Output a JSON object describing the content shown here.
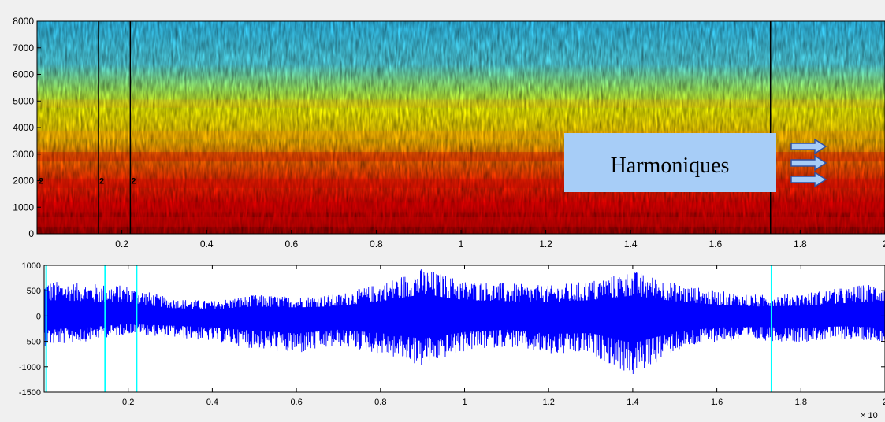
{
  "chart_data": [
    {
      "type": "heatmap",
      "title": "",
      "xlabel": "",
      "ylabel": "",
      "xlim": [
        0,
        2
      ],
      "ylim": [
        0,
        8000
      ],
      "xticks": [
        "0.2",
        "0.4",
        "0.6",
        "0.8",
        "1",
        "1.2",
        "1.4",
        "1.6",
        "1.8",
        "2"
      ],
      "yticks": [
        "0",
        "1000",
        "2000",
        "3000",
        "4000",
        "5000",
        "6000",
        "7000",
        "8000"
      ],
      "x_markers": [
        0.145,
        0.22,
        1.73
      ],
      "marker_labels": [
        "2",
        "2",
        "2"
      ],
      "marker_label_value": 2000,
      "colormap": [
        "#00008f",
        "#0000ff",
        "#00ffff",
        "#ffff00",
        "#ff0000",
        "#800000"
      ],
      "annotation": {
        "text": "Harmoniques",
        "arrows": 3,
        "arrow_color": "#a7cdf7"
      }
    },
    {
      "type": "line",
      "title": "",
      "xlabel": "",
      "ylabel": "",
      "xlim": [
        0,
        2
      ],
      "ylim": [
        -1500,
        1000
      ],
      "xticks": [
        "0.2",
        "0.4",
        "0.6",
        "0.8",
        "1",
        "1.2",
        "1.4",
        "1.6",
        "1.8",
        "2"
      ],
      "yticks": [
        "-1500",
        "-1000",
        "-500",
        "0",
        "500",
        "1000"
      ],
      "x_exponent_label": "× 10",
      "x_markers": [
        0.005,
        0.145,
        0.22,
        1.73
      ],
      "marker_color": "#00ffff",
      "series_color": "#0000ff",
      "envelope_x": [
        0,
        0.1,
        0.2,
        0.3,
        0.4,
        0.5,
        0.6,
        0.7,
        0.8,
        0.9,
        1.0,
        1.1,
        1.2,
        1.3,
        1.4,
        1.5,
        1.6,
        1.7,
        1.8,
        1.9,
        2.0
      ],
      "envelope_max": [
        700,
        650,
        600,
        350,
        300,
        420,
        380,
        430,
        650,
        950,
        700,
        650,
        600,
        700,
        900,
        650,
        500,
        420,
        450,
        560,
        680
      ],
      "envelope_min": [
        -600,
        -500,
        -350,
        -420,
        -500,
        -650,
        -760,
        -600,
        -750,
        -1000,
        -700,
        -600,
        -780,
        -750,
        -1200,
        -700,
        -500,
        -480,
        -520,
        -450,
        -500
      ]
    }
  ]
}
